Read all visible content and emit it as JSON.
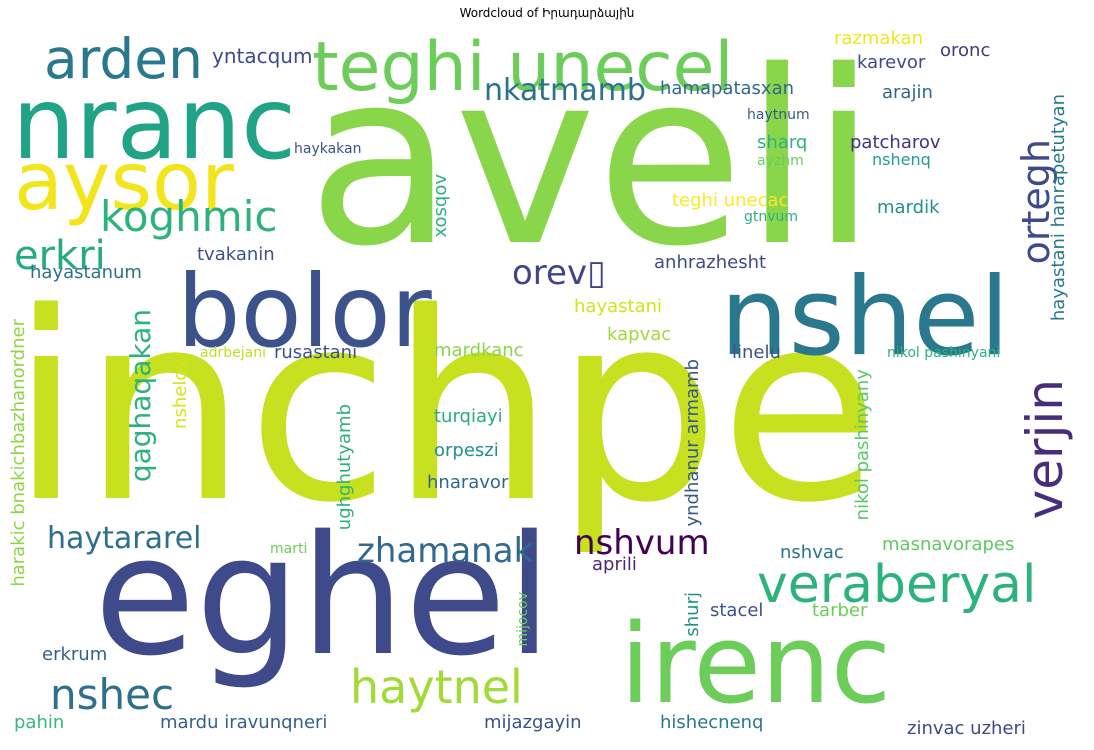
{
  "title": "Wordcloud of Իրադարձային",
  "words": [
    {
      "t": "aveli",
      "c": "#8ad64b"
    },
    {
      "t": "inchpe",
      "c": "#c7e020"
    },
    {
      "t": "eghel",
      "c": "#3e4a89"
    },
    {
      "t": "irenc",
      "c": "#6ccd5a"
    },
    {
      "t": "nranc",
      "c": "#20a386"
    },
    {
      "t": "nshel",
      "c": "#2a788e"
    },
    {
      "t": "bolor",
      "c": "#3b528b"
    },
    {
      "t": "aysor",
      "c": "#f2e51d"
    },
    {
      "t": "teghi unecel",
      "c": "#6ccd5a"
    },
    {
      "t": "arden",
      "c": "#2a788e"
    },
    {
      "t": "koghmic",
      "c": "#2db27d"
    },
    {
      "t": "veraberyal",
      "c": "#2db27d"
    },
    {
      "t": "haytnel",
      "c": "#a2da37"
    },
    {
      "t": "erkri",
      "c": "#25ab82"
    },
    {
      "t": "nshec",
      "c": "#2d708e"
    },
    {
      "t": "verjin",
      "c": "#472d7b"
    },
    {
      "t": "ortegh",
      "c": "#3e4a89"
    },
    {
      "t": "orev▯",
      "c": "#414487"
    },
    {
      "t": "zhamanak",
      "c": "#31688e"
    },
    {
      "t": "nshvum",
      "c": "#440154"
    },
    {
      "t": "haytararel",
      "c": "#2d708e"
    },
    {
      "t": "nkatmamb",
      "c": "#2c728e"
    },
    {
      "t": "qaghaqakan",
      "c": "#2db27d"
    },
    {
      "t": "yntacqum",
      "c": "#3e4a89"
    },
    {
      "t": "hayastanum",
      "c": "#2c728e"
    },
    {
      "t": "tvakanin",
      "c": "#3b528b"
    },
    {
      "t": "anhrazhesht",
      "c": "#3e4a89"
    },
    {
      "t": "hayastani",
      "c": "#d2e21b"
    },
    {
      "t": "kapvac",
      "c": "#9fda3a"
    },
    {
      "t": "mardkanc",
      "c": "#8ad64b"
    },
    {
      "t": "rusastani",
      "c": "#3b528b"
    },
    {
      "t": "linelu",
      "c": "#3b528b"
    },
    {
      "t": "turqiayi",
      "c": "#27ad81"
    },
    {
      "t": "orpeszi",
      "c": "#21918c"
    },
    {
      "t": "hnaravor",
      "c": "#31688e"
    },
    {
      "t": "nshelov",
      "c": "#d8e219"
    },
    {
      "t": "ughghutyamb",
      "c": "#2db27d"
    },
    {
      "t": "adrbejani",
      "c": "#c2df23"
    },
    {
      "t": "harakic bnakichbazhanordner",
      "c": "#8ed645"
    },
    {
      "t": "yndhanur armamb",
      "c": "#38598c"
    },
    {
      "t": "nikol pashinyany",
      "c": "#5ac864"
    },
    {
      "t": "nikol pashinyani",
      "c": "#2db27d"
    },
    {
      "t": "hayastani hanrapetutyan",
      "c": "#2a788e"
    },
    {
      "t": "razmakan",
      "c": "#f2e51d"
    },
    {
      "t": "oronc",
      "c": "#443983"
    },
    {
      "t": "karevor",
      "c": "#3e4a89"
    },
    {
      "t": "hamapatasxan",
      "c": "#31688e"
    },
    {
      "t": "arajin",
      "c": "#31688e"
    },
    {
      "t": "haytnum",
      "c": "#38598c"
    },
    {
      "t": "haykakan",
      "c": "#3b528b"
    },
    {
      "t": "sharq",
      "c": "#2db27d"
    },
    {
      "t": "patcharov",
      "c": "#46327e"
    },
    {
      "t": "nshenq",
      "c": "#1fa088"
    },
    {
      "t": "ayzhm",
      "c": "#6ccd5a"
    },
    {
      "t": "xosqov",
      "c": "#2db27d"
    },
    {
      "t": "teghi unecac",
      "c": "#fde725"
    },
    {
      "t": "mardik",
      "c": "#21918c"
    },
    {
      "t": "gtnvum",
      "c": "#2db27d"
    },
    {
      "t": "marti",
      "c": "#6ccd5a"
    },
    {
      "t": "mijocov",
      "c": "#6ccd5a"
    },
    {
      "t": "shurj",
      "c": "#21918c"
    },
    {
      "t": "aprili",
      "c": "#482878"
    },
    {
      "t": "nshvac",
      "c": "#2c728e"
    },
    {
      "t": "stacel",
      "c": "#3b528b"
    },
    {
      "t": "tarber",
      "c": "#6ccd5a"
    },
    {
      "t": "masnavorapes",
      "c": "#5ec962"
    },
    {
      "t": "erkrum",
      "c": "#355f8d"
    },
    {
      "t": "pahin",
      "c": "#37b878"
    },
    {
      "t": "mardu iravunqneri",
      "c": "#355f8d"
    },
    {
      "t": "mijazgayin",
      "c": "#3b528b"
    },
    {
      "t": "hishecnenq",
      "c": "#2a788e"
    },
    {
      "t": "zinvac uzheri",
      "c": "#3e4a89"
    }
  ]
}
